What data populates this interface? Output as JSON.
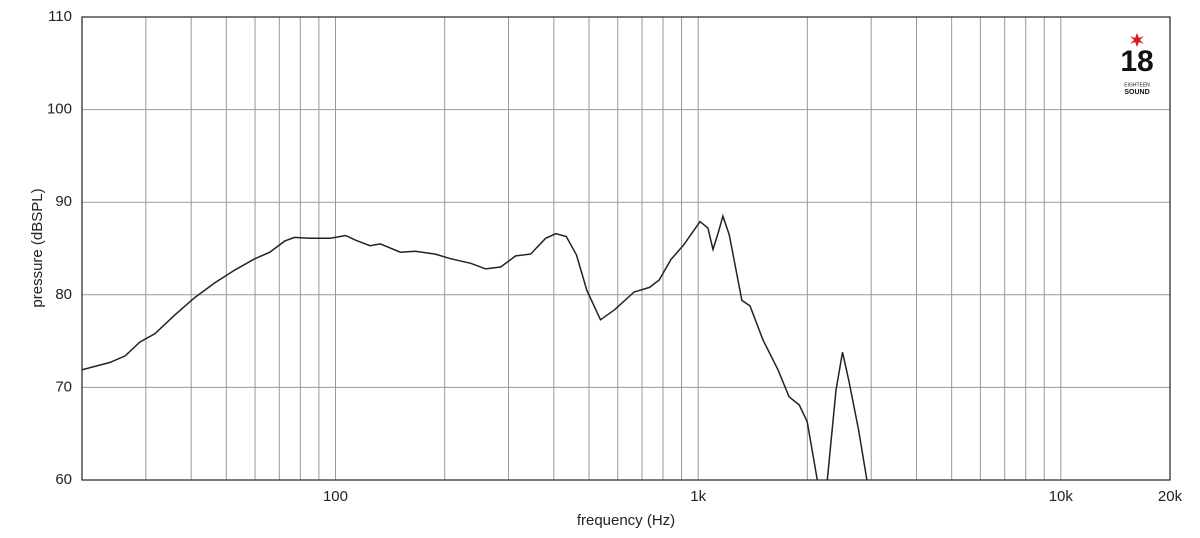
{
  "chart_data": {
    "type": "line",
    "xlabel": "frequency (Hz)",
    "ylabel": "pressure (dBSPL)",
    "logo": {
      "number": "18",
      "line1": "EIGHTEEN",
      "line2": "SOUND"
    },
    "xscale": "log",
    "grid": true,
    "xlim": [
      20,
      20000
    ],
    "ylim": [
      60,
      110
    ],
    "xticks": [
      100,
      {
        "value": 1000,
        "label": "1k"
      },
      {
        "value": 10000,
        "label": "10k"
      },
      {
        "value": 20000,
        "label": "20k"
      }
    ],
    "xminorticks": [
      30,
      40,
      50,
      60,
      70,
      80,
      90,
      200,
      300,
      400,
      500,
      600,
      700,
      800,
      900,
      2000,
      3000,
      4000,
      5000,
      6000,
      7000,
      8000,
      9000
    ],
    "yticks": [
      60,
      70,
      80,
      90,
      100,
      110
    ],
    "x": [
      20,
      23.9,
      26.3,
      28.9,
      31.8,
      36,
      40.9,
      46.5,
      52.9,
      60,
      65.9,
      72.4,
      77.1,
      85,
      96.8,
      106.6,
      113.6,
      124.6,
      132.8,
      151,
      165.9,
      188.5,
      207.5,
      235.9,
      259.5,
      285.4,
      313.9,
      345.2,
      379.6,
      405.3,
      432.8,
      462,
      493,
      538,
      589,
      666,
      734,
      781,
      841,
      913,
      1012,
      1064,
      1099,
      1138,
      1170,
      1218,
      1320,
      1390,
      1510,
      1660,
      1780,
      1900,
      1998,
      2130,
      2200,
      2270,
      2400,
      2500,
      2600,
      2770,
      2920
    ],
    "series": [
      {
        "color": "#222222",
        "values": [
          71.9,
          72.7,
          73.4,
          74.9,
          75.8,
          77.8,
          79.7,
          81.3,
          82.7,
          83.9,
          84.6,
          85.8,
          86.2,
          86.1,
          86.1,
          86.4,
          85.9,
          85.3,
          85.5,
          84.6,
          84.7,
          84.4,
          83.9,
          83.4,
          82.8,
          83.0,
          84.2,
          84.4,
          86.1,
          86.6,
          86.3,
          84.3,
          80.5,
          77.3,
          78.4,
          80.3,
          80.8,
          81.6,
          83.8,
          85.4,
          87.9,
          87.2,
          84.9,
          86.8,
          88.5,
          86.5,
          79.4,
          78.8,
          75.1,
          71.9,
          69.0,
          68.1,
          66.3,
          60,
          null,
          60,
          69.7,
          73.8,
          70.8,
          65.4,
          60
        ]
      }
    ]
  }
}
